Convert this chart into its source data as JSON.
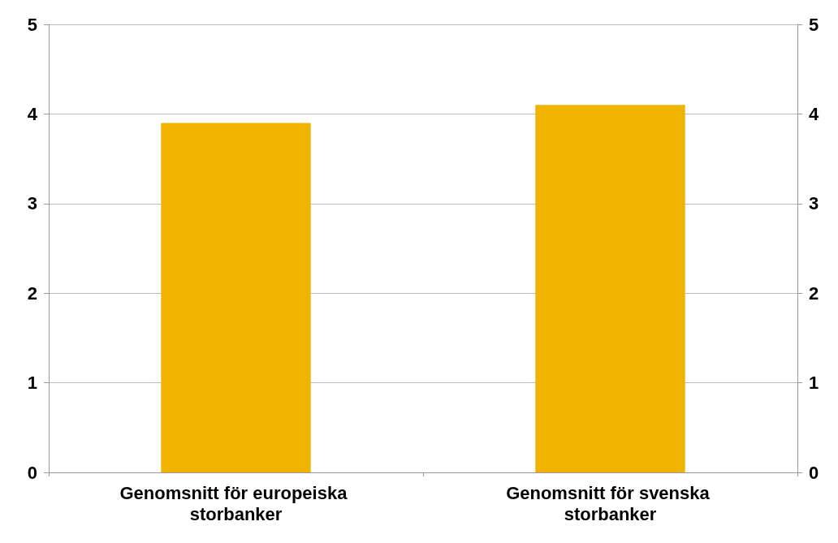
{
  "chart_data": {
    "type": "bar",
    "categories": [
      "Genomsnitt för europeiska storbanker",
      "Genomsnitt för svenska storbanker"
    ],
    "values": [
      3.9,
      4.1
    ],
    "color": "#f0b400",
    "ylim": [
      0,
      5
    ],
    "yticks": [
      0,
      1,
      2,
      3,
      4,
      5
    ],
    "y2lim": [
      0,
      5
    ],
    "y2ticks": [
      0,
      1,
      2,
      3,
      4,
      5
    ],
    "grid": "y"
  }
}
